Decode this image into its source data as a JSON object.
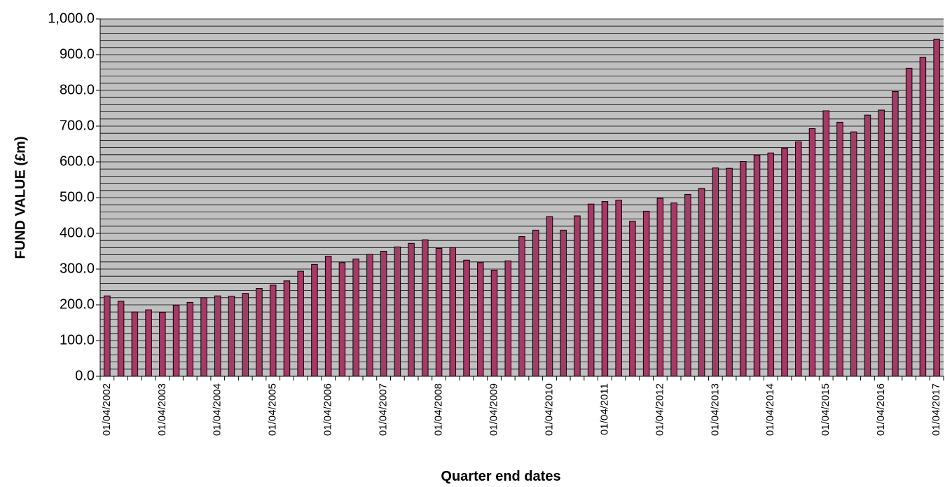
{
  "chart_data": {
    "type": "bar",
    "title": "",
    "xlabel": "Quarter end dates",
    "ylabel": "FUND VALUE (£m)",
    "ylim": [
      0,
      1000
    ],
    "y_ticks": [
      "0.0",
      "100.0",
      "200.0",
      "300.0",
      "400.0",
      "500.0",
      "600.0",
      "700.0",
      "800.0",
      "900.0",
      "1,000.0"
    ],
    "grid": true,
    "legend": "none",
    "x_tick_labels": [
      {
        "index": 0,
        "label": "01/04/2002"
      },
      {
        "index": 4,
        "label": "01/04/2003"
      },
      {
        "index": 8,
        "label": "01/04/2004"
      },
      {
        "index": 12,
        "label": "01/04/2005"
      },
      {
        "index": 16,
        "label": "01/04/2006"
      },
      {
        "index": 20,
        "label": "01/04/2007"
      },
      {
        "index": 24,
        "label": "01/04/2008"
      },
      {
        "index": 28,
        "label": "01/04/2009"
      },
      {
        "index": 32,
        "label": "01/04/2010"
      },
      {
        "index": 36,
        "label": "01/04/2011"
      },
      {
        "index": 40,
        "label": "01/04/2012"
      },
      {
        "index": 44,
        "label": "01/04/2013"
      },
      {
        "index": 48,
        "label": "01/04/2014"
      },
      {
        "index": 52,
        "label": "01/04/2015"
      },
      {
        "index": 56,
        "label": "01/04/2016"
      },
      {
        "index": 60,
        "label": "01/04/2017"
      }
    ],
    "values": [
      225,
      210,
      180,
      186,
      179,
      199,
      207,
      220,
      225,
      224,
      232,
      246,
      255,
      267,
      294,
      313,
      336,
      318,
      328,
      341,
      350,
      362,
      372,
      382,
      358,
      360,
      325,
      318,
      297,
      323,
      391,
      409,
      447,
      409,
      449,
      482,
      489,
      493,
      434,
      462,
      498,
      485,
      509,
      526,
      583,
      582,
      601,
      619,
      625,
      638,
      656,
      693,
      743,
      711,
      684,
      731,
      745,
      797,
      862,
      893,
      943
    ],
    "colors": {
      "bar_fill": "#a53a67",
      "bar_stroke": "#000000",
      "plot_background": "#c0c0c0",
      "gridline": "#000000"
    }
  }
}
